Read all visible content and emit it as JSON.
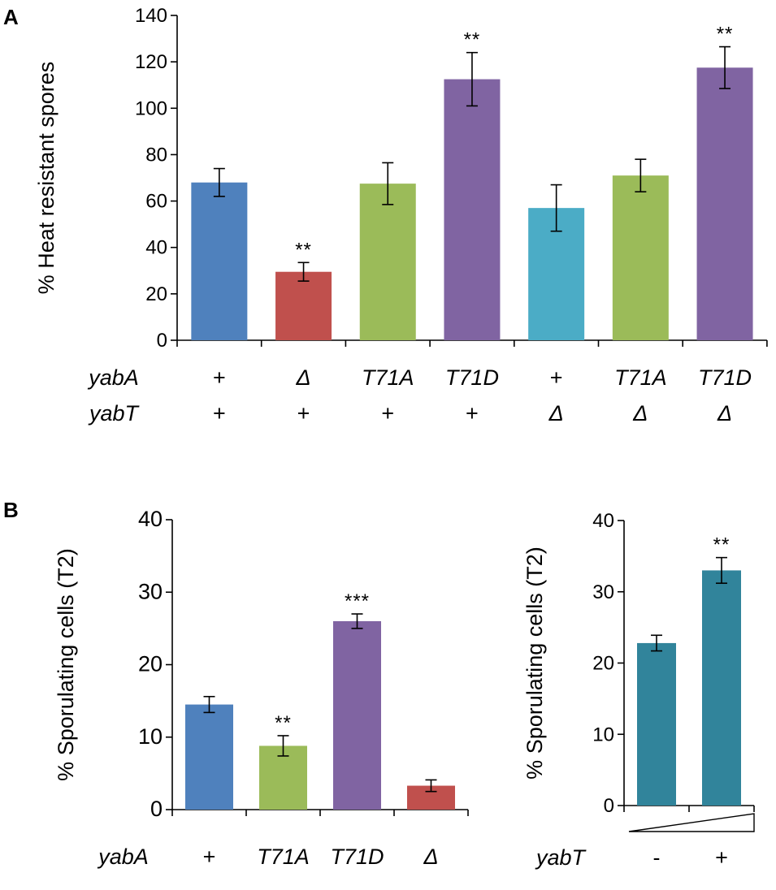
{
  "panel_labels": [
    "A",
    "B"
  ],
  "chart_data": [
    {
      "id": "A",
      "type": "bar",
      "ylabel": "% Heat resistant spores",
      "ylim": [
        0,
        140
      ],
      "yticks": [
        0,
        20,
        40,
        60,
        80,
        100,
        120,
        140
      ],
      "values": [
        68,
        29.5,
        67.5,
        112.5,
        57,
        71,
        117.5
      ],
      "errors": [
        6,
        4,
        9,
        11.5,
        10,
        7,
        9
      ],
      "colors": [
        "#4F81BD",
        "#C0504D",
        "#9BBB59",
        "#8064A2",
        "#4BACC6",
        "#9BBB59",
        "#8064A2"
      ],
      "significance": [
        "",
        "**",
        "",
        "**",
        "",
        "",
        "**"
      ],
      "row_labels": [
        {
          "name": "yabA",
          "values": [
            "+",
            "Δ",
            "T71A",
            "T71D",
            "+",
            "T71A",
            "T71D"
          ]
        },
        {
          "name": "yabT",
          "values": [
            "+",
            "+",
            "+",
            "+",
            "Δ",
            "Δ",
            "Δ"
          ]
        }
      ]
    },
    {
      "id": "B-left",
      "type": "bar",
      "ylabel": "% Sporulating cells (T2)",
      "ylim": [
        0,
        40
      ],
      "yticks": [
        0,
        10,
        20,
        30,
        40
      ],
      "values": [
        14.5,
        8.8,
        26,
        3.3
      ],
      "errors": [
        1.1,
        1.4,
        1.0,
        0.8
      ],
      "colors": [
        "#4F81BD",
        "#9BBB59",
        "#8064A2",
        "#C0504D"
      ],
      "significance": [
        "",
        "**",
        "***",
        ""
      ],
      "row_labels": [
        {
          "name": "yabA",
          "values": [
            "+",
            "T71A",
            "T71D",
            "Δ"
          ]
        }
      ]
    },
    {
      "id": "B-right",
      "type": "bar",
      "ylabel": "% Sporulating cells (T2)",
      "ylim": [
        0,
        40
      ],
      "yticks": [
        0,
        10,
        20,
        30,
        40
      ],
      "values": [
        22.8,
        33
      ],
      "errors": [
        1.1,
        1.8
      ],
      "colors": [
        "#31849B",
        "#31849B"
      ],
      "significance": [
        "",
        "**"
      ],
      "row_labels": [
        {
          "name": "yabT",
          "values": [
            "-",
            "+"
          ]
        }
      ],
      "gradient_indicator": "increasing"
    }
  ]
}
